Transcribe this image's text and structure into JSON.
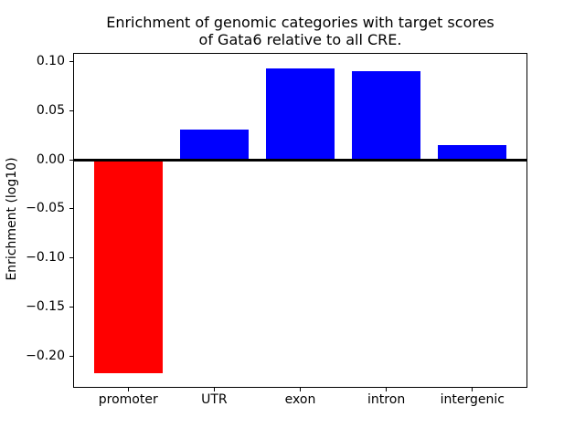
{
  "chart_data": {
    "type": "bar",
    "title": "Enrichment of genomic categories with target scores\nof Gata6 relative to all CRE.",
    "xlabel": "",
    "ylabel": "Enrichment (log10)",
    "categories": [
      "promoter",
      "UTR",
      "exon",
      "intron",
      "intergenic"
    ],
    "values": [
      -0.218,
      0.031,
      0.093,
      0.09,
      0.015
    ],
    "bar_colors": [
      "#ff0000",
      "#0000ff",
      "#0000ff",
      "#0000ff",
      "#0000ff"
    ],
    "positive_color": "#0000ff",
    "negative_color": "#ff0000",
    "background_color": "#ffffff",
    "axis_color": "#000000",
    "bar_width": 0.8,
    "xlim": [
      -0.64,
      4.64
    ],
    "ylim": [
      -0.2324,
      0.1088
    ],
    "yticks": {
      "values": [
        0.1,
        0.05,
        0.0,
        -0.05,
        -0.1,
        -0.15,
        -0.2
      ],
      "labels": [
        "0.10",
        "0.05",
        "0.00",
        "−0.05",
        "−0.10",
        "−0.15",
        "−0.20"
      ]
    },
    "grid": false,
    "legend": false,
    "zero_line": true
  }
}
